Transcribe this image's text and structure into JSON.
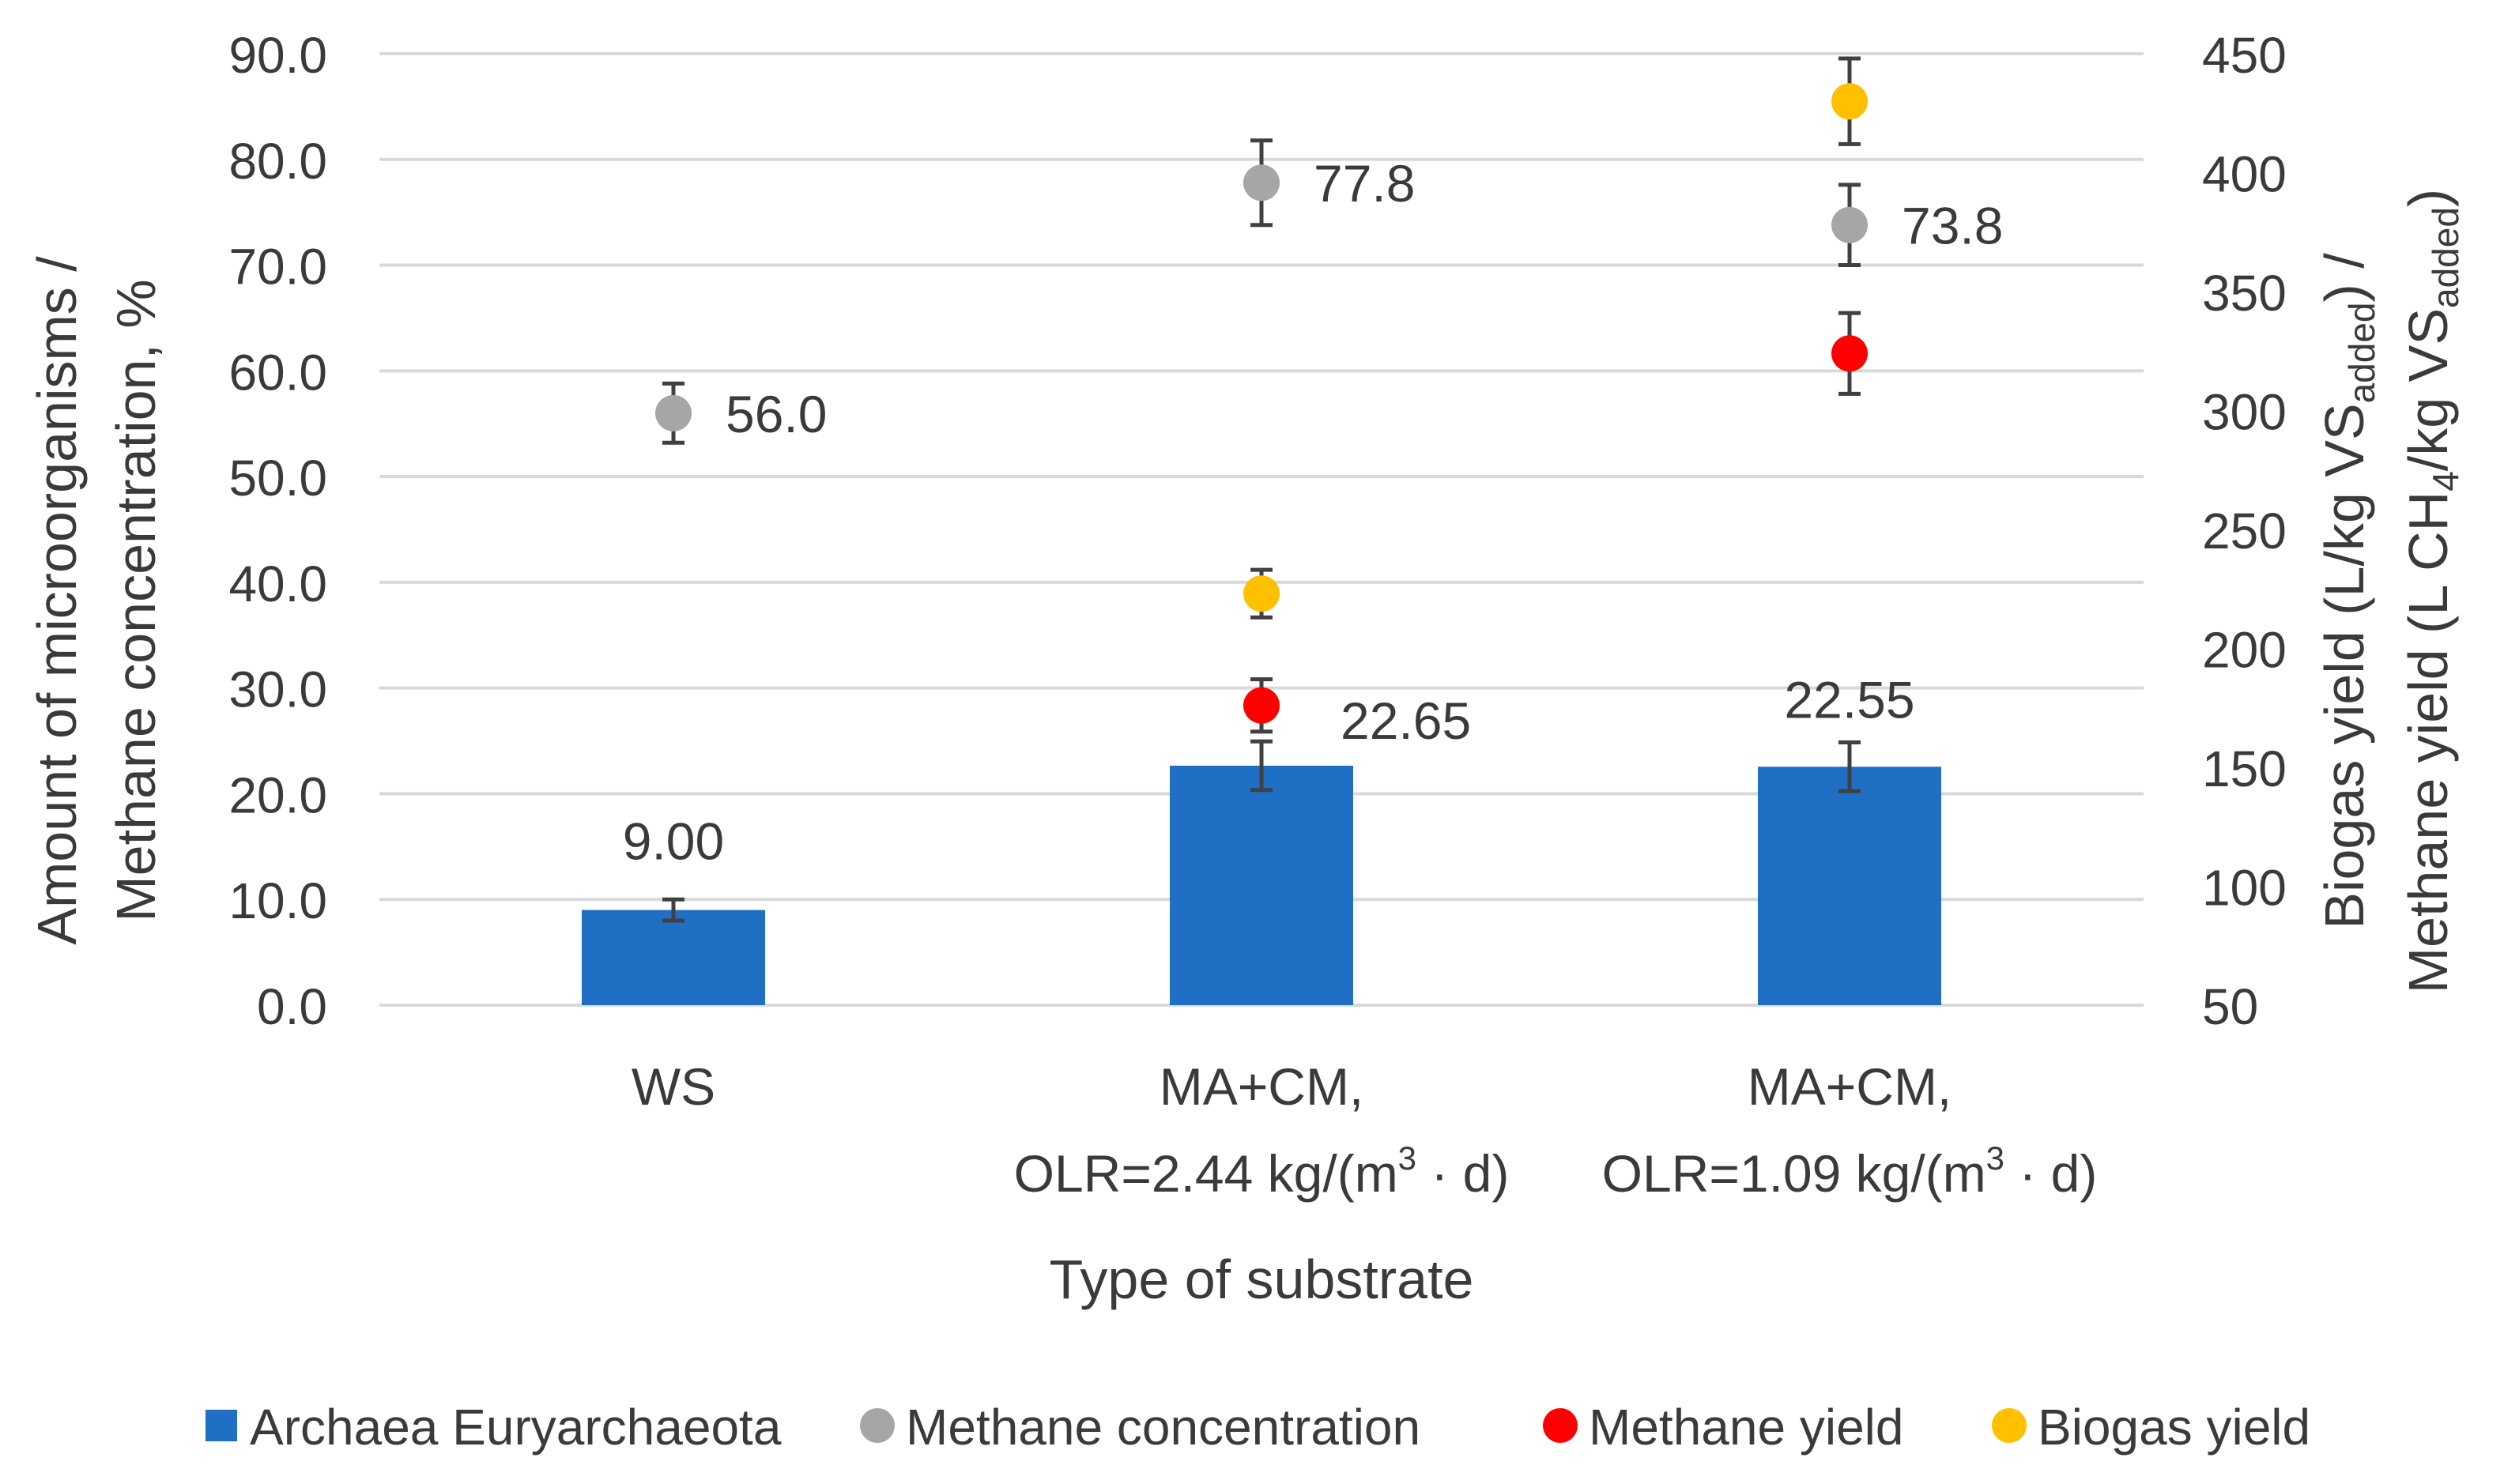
{
  "chart_data": {
    "type": "bar",
    "xlabel": "Type of substrate",
    "ylabel_left": [
      "Amount of microorganisms /",
      "Methane concentration, %"
    ],
    "ylabel_right": {
      "line1": {
        "a": "Biogas yield (L/kg VS",
        "sub": "added",
        "b": ") /"
      },
      "line2": {
        "a": "Methane yield (L CH",
        "sub1": "4",
        "b": "/kg VS",
        "sub2": "added",
        "c": ")"
      }
    },
    "y_left": {
      "min": 0,
      "max": 90,
      "step": 10,
      "ticks": [
        "0.0",
        "10.0",
        "20.0",
        "30.0",
        "40.0",
        "50.0",
        "60.0",
        "70.0",
        "80.0",
        "90.0"
      ]
    },
    "y_right": {
      "min": 50,
      "max": 450,
      "step": 50,
      "ticks": [
        "50",
        "100",
        "150",
        "200",
        "250",
        "300",
        "350",
        "400",
        "450"
      ]
    },
    "grid": true,
    "legend_position": "bottom",
    "categories": [
      {
        "lines": [
          "WS"
        ]
      },
      {
        "lines": [
          "MA+CM,",
          "OLR=2.44 kg/(m"
        ],
        "sup": "3",
        "tail": " · d)"
      },
      {
        "lines": [
          "MA+CM,",
          "OLR=1.09 kg/(m"
        ],
        "sup": "3",
        "tail": " · d)"
      }
    ],
    "series": [
      {
        "name": "Archaea Euryarchaeota",
        "kind": "bar",
        "axis": "left",
        "color": "#1f6fc5",
        "values": [
          9.0,
          22.65,
          22.55
        ],
        "errors": [
          1.0,
          2.3,
          2.3
        ],
        "labels": [
          "9.00",
          "22.65",
          "22.55"
        ]
      },
      {
        "name": "Methane concentration",
        "kind": "point",
        "axis": "left",
        "color": "#a6a6a6",
        "values": [
          56.0,
          77.8,
          73.8
        ],
        "errors": [
          2.8,
          4.0,
          3.8
        ],
        "labels": [
          "56.0",
          "77.8",
          "73.8"
        ]
      },
      {
        "name": "Methane yield",
        "kind": "point",
        "axis": "right",
        "color": "#ff0000",
        "values": [
          null,
          176,
          324
        ],
        "errors": [
          null,
          11,
          17
        ],
        "labels": [
          null,
          null,
          null
        ]
      },
      {
        "name": "Biogas yield",
        "kind": "point",
        "axis": "right",
        "color": "#ffc000",
        "values": [
          null,
          223,
          430
        ],
        "errors": [
          null,
          10,
          18
        ],
        "labels": [
          null,
          null,
          null
        ]
      }
    ]
  }
}
